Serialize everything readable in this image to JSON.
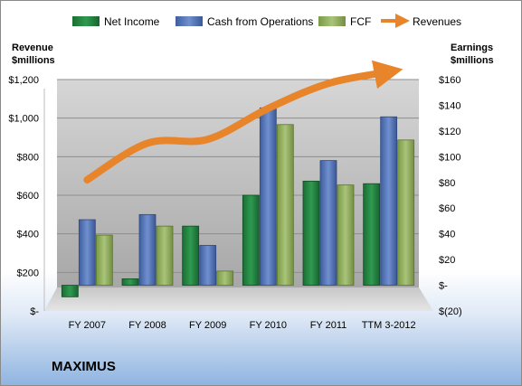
{
  "company": "MAXIMUS",
  "chart_data": {
    "type": "bar",
    "categories": [
      "FY 2007",
      "FY 2008",
      "FY 2009",
      "FY 2010",
      "FY 2011",
      "TTM 3-2012"
    ],
    "series": [
      {
        "name": "Net Income",
        "axis": "right",
        "type": "bar",
        "color": "#1f7a3a",
        "values": [
          -9,
          5,
          46,
          70,
          81,
          79
        ]
      },
      {
        "name": "Cash from Operations",
        "axis": "right",
        "type": "bar",
        "color": "#4a6ab0",
        "values": [
          51,
          55,
          31,
          138,
          97,
          131
        ]
      },
      {
        "name": "FCF",
        "axis": "right",
        "type": "bar",
        "color": "#8aaa55",
        "values": [
          39,
          46,
          11,
          125,
          78,
          113
        ]
      },
      {
        "name": "Revenues",
        "axis": "left",
        "type": "line",
        "color": "#e8842a",
        "values": [
          680,
          870,
          890,
          1050,
          1180,
          1240
        ]
      }
    ],
    "left_axis": {
      "title": [
        "Revenue",
        "$millions"
      ],
      "min": 0,
      "max": 1200,
      "step": 200,
      "tick_labels": [
        "$-",
        "$200",
        "$400",
        "$600",
        "$800",
        "$1,000",
        "$1,200"
      ]
    },
    "right_axis": {
      "title": [
        "Earnings",
        "$millions"
      ],
      "min": -20,
      "max": 160,
      "step": 20,
      "tick_labels": [
        "$(20)",
        "$-",
        "$20",
        "$40",
        "$60",
        "$80",
        "$100",
        "$120",
        "$140",
        "$160"
      ]
    },
    "grid": true,
    "legend_position": "top"
  }
}
